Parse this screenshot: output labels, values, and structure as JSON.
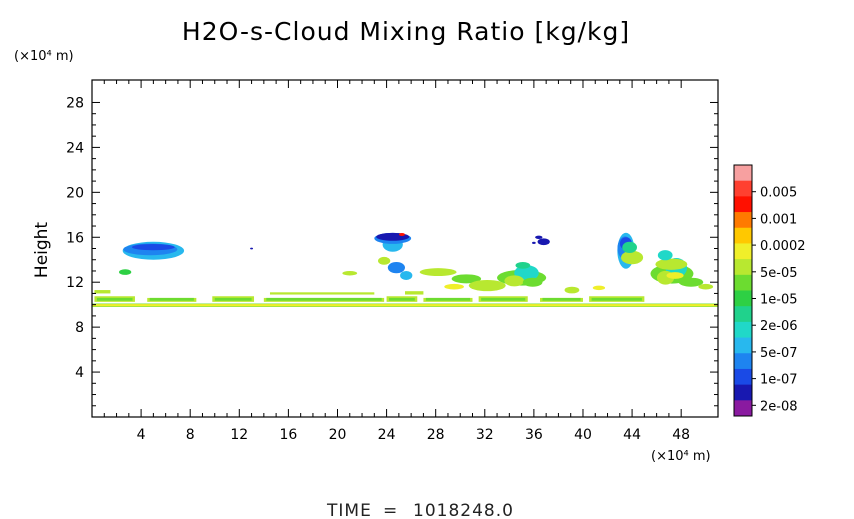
{
  "chart_data": {
    "type": "heatmap",
    "title": "H2O-s-Cloud Mixing Ratio [kg/kg]",
    "ylabel": "Height",
    "y_unit": "(×10⁴ m)",
    "x_unit": "(×10⁴ m)",
    "xlim": [
      0,
      51
    ],
    "ylim": [
      0,
      30
    ],
    "x_ticks": [
      "4",
      "8",
      "12",
      "16",
      "20",
      "24",
      "28",
      "32",
      "36",
      "40",
      "44",
      "48"
    ],
    "y_ticks": [
      "4",
      "8",
      "12",
      "16",
      "20",
      "24",
      "28"
    ],
    "colorbar": {
      "labels": [
        "0.005",
        "0.001",
        "0.0002",
        "5e-05",
        "1e-05",
        "2e-06",
        "5e-07",
        "1e-07",
        "2e-08"
      ],
      "colors": [
        "#f7a0a0",
        "#ff4030",
        "#ff1000",
        "#ff7a00",
        "#ffc800",
        "#f0ef2a",
        "#b8e830",
        "#6cdc30",
        "#2ed044",
        "#20d28c",
        "#20d8c8",
        "#28b8ee",
        "#1e84f0",
        "#1a4ae6",
        "#1818b0",
        "#8a1aa0"
      ]
    },
    "features": [
      {
        "kind": "cloud-layer",
        "x": [
          0,
          51
        ],
        "y": [
          9.8,
          10.1
        ],
        "level": "1e-05"
      },
      {
        "kind": "cloud-layer",
        "x": [
          0,
          45
        ],
        "y": [
          10.2,
          11.0
        ],
        "level": "5e-05"
      },
      {
        "kind": "cloud-patch",
        "x": [
          2.5,
          7.5
        ],
        "y": [
          14.0,
          15.6
        ],
        "level": "1e-07"
      },
      {
        "kind": "cloud-patch",
        "x": [
          23.0,
          26.0
        ],
        "y": [
          15.2,
          16.6
        ],
        "level": "2e-08"
      },
      {
        "kind": "cloud-patch",
        "x": [
          33.0,
          37.0
        ],
        "y": [
          11.0,
          13.8
        ],
        "level": "5e-05"
      },
      {
        "kind": "cloud-patch",
        "x": [
          42.8,
          44.2
        ],
        "y": [
          13.2,
          16.4
        ],
        "level": "1e-07"
      },
      {
        "kind": "cloud-patch",
        "x": [
          45.5,
          49.0
        ],
        "y": [
          11.0,
          14.5
        ],
        "level": "5e-05"
      }
    ]
  },
  "footer": {
    "time_label": "TIME",
    "time_eq": "=",
    "time_value": "1018248.0"
  }
}
